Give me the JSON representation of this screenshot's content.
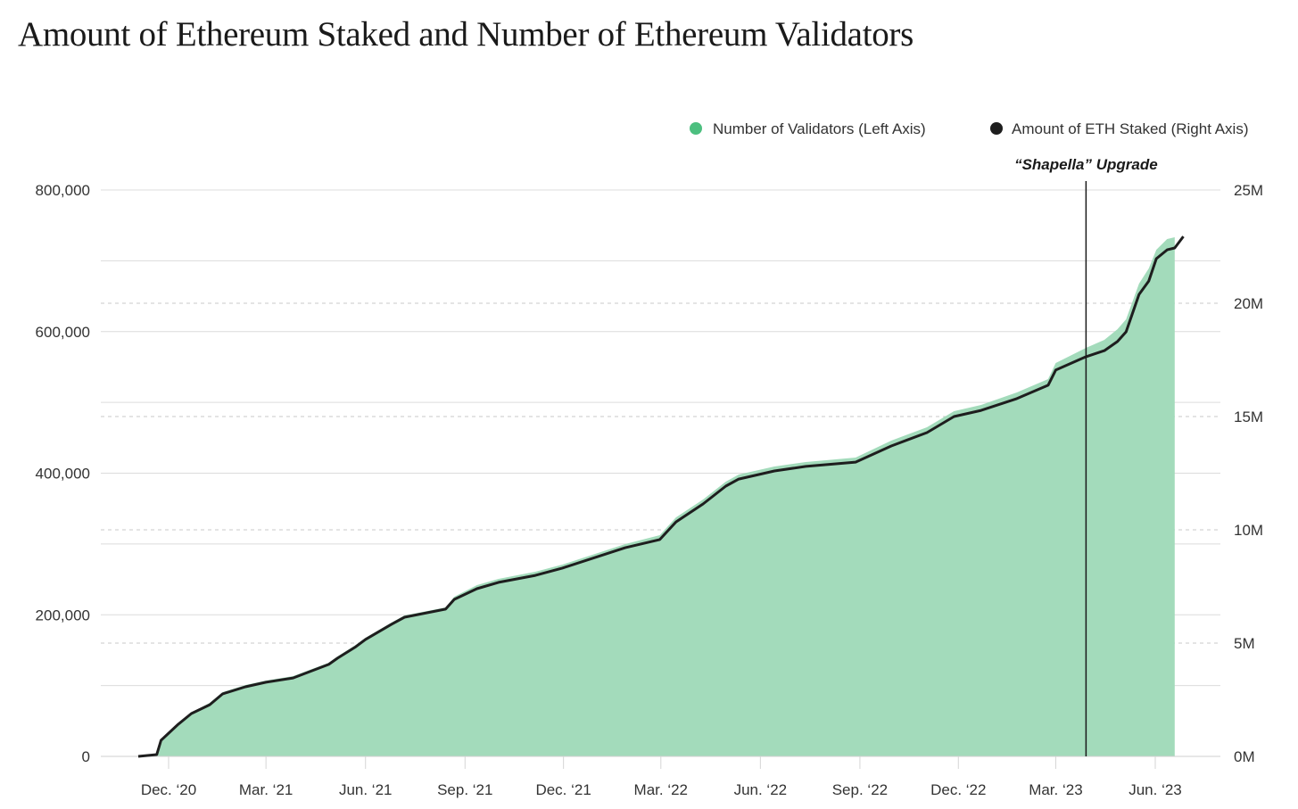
{
  "chart_data": {
    "type": "area+line",
    "title": "Amount of Ethereum Staked and Number of Ethereum Validators",
    "legend_position": "top-right",
    "grid": true,
    "colors": {
      "validators": "#a3dbbb",
      "validators_dot": "#4cbf7f",
      "eth_staked": "#1e1e1e"
    },
    "x_ticks": [
      "Dec. ‘20",
      "Mar. ‘21",
      "Jun. ‘21",
      "Sep. ‘21",
      "Dec. ‘21",
      "Mar. ‘22",
      "Jun. ‘22",
      "Sep. ‘22",
      "Dec. ‘22",
      "Mar. ‘23",
      "Jun. ‘23"
    ],
    "x_tick_dates": [
      "2020-12-01",
      "2021-03-01",
      "2021-06-01",
      "2021-09-01",
      "2021-12-01",
      "2022-03-01",
      "2022-06-01",
      "2022-09-01",
      "2022-12-01",
      "2023-03-01",
      "2023-06-01"
    ],
    "left_axis": {
      "ylim": [
        0,
        800000
      ],
      "ticks": [
        "0",
        "200,000",
        "400,000",
        "600,000",
        "800,000"
      ],
      "tick_values": [
        0,
        200000,
        400000,
        600000,
        800000
      ]
    },
    "right_axis": {
      "ylim": [
        0,
        25
      ],
      "unit": "M",
      "ticks": [
        "0M",
        "5M",
        "10M",
        "15M",
        "20M",
        "25M"
      ],
      "tick_values": [
        0,
        5,
        10,
        15,
        20,
        25
      ]
    },
    "annotation": {
      "label": "“Shapella” Upgrade",
      "date": "2023-03-29"
    },
    "series": [
      {
        "name": "Number of Validators (Left Axis)",
        "type": "area",
        "axis": "left",
        "dates": [
          "2020-11-20",
          "2020-11-24",
          "2020-12-10",
          "2020-12-22",
          "2021-01-08",
          "2021-01-20",
          "2021-02-10",
          "2021-03-01",
          "2021-03-26",
          "2021-04-28",
          "2021-05-06",
          "2021-05-23",
          "2021-06-01",
          "2021-06-25",
          "2021-07-07",
          "2021-08-14",
          "2021-08-22",
          "2021-09-12",
          "2021-10-02",
          "2021-11-05",
          "2021-11-30",
          "2022-01-27",
          "2022-02-28",
          "2022-03-15",
          "2022-04-09",
          "2022-04-30",
          "2022-05-12",
          "2022-06-14",
          "2022-07-13",
          "2022-08-28",
          "2022-09-30",
          "2022-11-02",
          "2022-11-27",
          "2022-12-22",
          "2023-01-24",
          "2023-02-22",
          "2023-03-01",
          "2023-03-29",
          "2023-04-15",
          "2023-04-27",
          "2023-05-05",
          "2023-05-17",
          "2023-05-26",
          "2023-06-02",
          "2023-06-12",
          "2023-06-19"
        ],
        "values": [
          2520,
          23936,
          46613,
          61730,
          75588,
          90706,
          100784,
          107083,
          113382,
          132279,
          141098,
          157475,
          167553,
          188970,
          199048,
          210387,
          225504,
          241882,
          250700,
          260779,
          270857,
          299832,
          312430,
          337626,
          362822,
          388018,
          398097,
          409435,
          415734,
          422033,
          445969,
          464866,
          487543,
          496361,
          514000,
          532900,
          555600,
          577000,
          588300,
          603400,
          617300,
          667700,
          689100,
          715600,
          730700,
          733200
        ]
      },
      {
        "name": "Amount of ETH Staked (Right Axis)",
        "type": "line",
        "axis": "right",
        "unit": "M ETH",
        "dates": [
          "2020-11-03",
          "2020-11-20",
          "2020-11-24",
          "2020-12-10",
          "2020-12-22",
          "2021-01-08",
          "2021-01-20",
          "2021-02-10",
          "2021-03-01",
          "2021-03-26",
          "2021-04-28",
          "2021-05-06",
          "2021-05-23",
          "2021-06-01",
          "2021-06-25",
          "2021-07-07",
          "2021-08-14",
          "2021-08-22",
          "2021-09-12",
          "2021-10-02",
          "2021-11-05",
          "2021-11-30",
          "2022-01-27",
          "2022-02-28",
          "2022-03-15",
          "2022-04-09",
          "2022-04-30",
          "2022-05-12",
          "2022-06-14",
          "2022-07-13",
          "2022-08-28",
          "2022-09-30",
          "2022-11-02",
          "2022-11-27",
          "2022-12-22",
          "2023-01-24",
          "2023-02-22",
          "2023-03-01",
          "2023-03-29",
          "2023-04-15",
          "2023-04-27",
          "2023-05-05",
          "2023-05-17",
          "2023-05-26",
          "2023-06-02",
          "2023-06-12",
          "2023-06-19",
          "2023-06-27"
        ],
        "values": [
          0,
          0.08,
          0.71,
          1.42,
          1.89,
          2.28,
          2.76,
          3.07,
          3.27,
          3.46,
          4.06,
          4.33,
          4.84,
          5.16,
          5.83,
          6.14,
          6.5,
          6.93,
          7.4,
          7.68,
          7.99,
          8.31,
          9.21,
          9.57,
          10.35,
          11.14,
          11.93,
          12.24,
          12.6,
          12.8,
          12.99,
          13.7,
          14.29,
          15.0,
          15.27,
          15.79,
          16.38,
          17.05,
          17.64,
          17.91,
          18.31,
          18.74,
          20.39,
          20.98,
          21.97,
          22.36,
          22.44,
          22.95
        ]
      }
    ]
  }
}
